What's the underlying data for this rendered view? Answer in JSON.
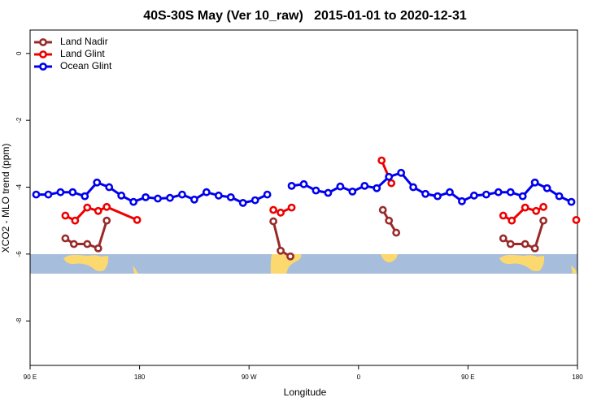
{
  "chart_data": {
    "type": "line",
    "title": "40S-30S May (Ver 10_raw)   2015-01-01 to 2020-12-31",
    "x_label": "Longitude",
    "y_label": "XCO2 - MLO trend (ppm)",
    "xlim": [
      90,
      540
    ],
    "ylim": [
      -9.33,
      0.7
    ],
    "xticks": [
      {
        "value": 90,
        "label": "90 E"
      },
      180,
      {
        "value": 270,
        "label": "90 W"
      },
      {
        "value": 360,
        "label": "0"
      },
      {
        "value": 450,
        "label": "90 E"
      },
      {
        "value": 540,
        "label": "180"
      }
    ],
    "yticks": [
      0,
      -2,
      -4,
      -6,
      -8
    ],
    "legend": "top-left",
    "series": [
      {
        "name": "Land Nadir",
        "color": "#9a2a2a",
        "x": [
          119,
          126,
          137,
          146,
          153,
          null,
          290,
          296,
          304,
          null,
          380,
          385,
          391,
          null,
          479,
          485,
          497,
          505,
          512
        ],
        "values": [
          -5.53,
          -5.7,
          -5.7,
          -5.83,
          -5.0,
          null,
          -5.02,
          -5.9,
          -6.07,
          null,
          -4.68,
          -5.0,
          -5.36,
          null,
          -5.53,
          -5.7,
          -5.7,
          -5.83,
          -5.0
        ]
      },
      {
        "name": "Land Glint",
        "color": "#ee0000",
        "x": [
          119,
          127,
          137,
          146,
          153,
          178,
          null,
          290,
          null,
          296,
          305,
          null,
          379,
          387,
          null,
          479,
          486,
          497,
          506,
          512,
          null,
          539
        ],
        "values": [
          -4.85,
          -5.0,
          -4.61,
          -4.71,
          -4.59,
          -4.98,
          null,
          -4.68,
          null,
          -4.76,
          -4.61,
          null,
          -3.2,
          -3.88,
          null,
          -4.85,
          -5.0,
          -4.61,
          -4.71,
          -4.59,
          null,
          -4.98
        ]
      },
      {
        "name": "Ocean Glint",
        "color": "#0000ee",
        "x": [
          95,
          105,
          115,
          125,
          135,
          145,
          155,
          165,
          175,
          185,
          195,
          205,
          215,
          225,
          235,
          245,
          255,
          265,
          275,
          285,
          295,
          305,
          315,
          325,
          335,
          345,
          355,
          365,
          375,
          385,
          395,
          405,
          415,
          425,
          435,
          445,
          455,
          465,
          475,
          485,
          495,
          505,
          515,
          525,
          535
        ],
        "values": [
          -4.22,
          -4.22,
          -4.15,
          -4.15,
          -4.27,
          -3.86,
          -4.0,
          -4.25,
          -4.44,
          -4.3,
          -4.34,
          -4.32,
          -4.22,
          -4.37,
          -4.15,
          -4.25,
          -4.3,
          -4.47,
          -4.39,
          -4.22,
          null,
          -3.96,
          -3.91,
          -4.1,
          -4.17,
          -3.98,
          -4.13,
          -3.96,
          -4.03,
          -3.69,
          -3.57,
          -4.0,
          -4.2,
          -4.27,
          -4.15,
          -4.42,
          -4.25,
          -4.22,
          -4.15,
          -4.15,
          -4.27,
          -3.86,
          -4.03,
          -4.27,
          -4.44
        ]
      }
    ]
  }
}
